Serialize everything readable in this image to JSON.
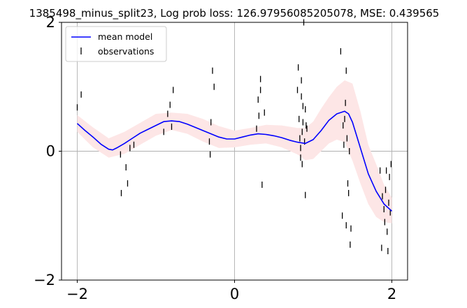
{
  "chart_data": {
    "type": "line",
    "title": "1385498_minus_split23, Log prob loss: 126.97956085205078, MSE: 0.439565",
    "xlabel": "",
    "ylabel": "",
    "xlim": [
      -2.2,
      2.2
    ],
    "ylim": [
      -2,
      2
    ],
    "x_ticks": [
      -2,
      0,
      2
    ],
    "y_ticks": [
      -2,
      0,
      2
    ],
    "x_tick_labels": [
      "−2",
      "0",
      "2"
    ],
    "y_tick_labels": [
      "−2",
      "0",
      "2"
    ],
    "grid": true,
    "legend": {
      "placement": "upper-left",
      "entries": [
        "mean model",
        "observations"
      ]
    },
    "colors": {
      "mean": "#0000ff",
      "band": "#fde6e6",
      "observations": "#000000",
      "grid": "#b0b0b0"
    },
    "series": [
      {
        "name": "mean model",
        "kind": "line",
        "x": [
          -2.0,
          -1.9,
          -1.8,
          -1.7,
          -1.6,
          -1.55,
          -1.5,
          -1.4,
          -1.3,
          -1.2,
          -1.1,
          -1.0,
          -0.9,
          -0.8,
          -0.7,
          -0.6,
          -0.5,
          -0.4,
          -0.3,
          -0.2,
          -0.1,
          0.0,
          0.1,
          0.2,
          0.3,
          0.4,
          0.5,
          0.6,
          0.7,
          0.8,
          0.9,
          1.0,
          1.1,
          1.2,
          1.3,
          1.4,
          1.45,
          1.5,
          1.6,
          1.7,
          1.8,
          1.9,
          2.0
        ],
        "y": [
          0.43,
          0.32,
          0.22,
          0.11,
          0.03,
          0.02,
          0.05,
          0.12,
          0.2,
          0.28,
          0.34,
          0.4,
          0.46,
          0.47,
          0.46,
          0.42,
          0.37,
          0.32,
          0.27,
          0.22,
          0.19,
          0.19,
          0.22,
          0.25,
          0.27,
          0.26,
          0.24,
          0.21,
          0.17,
          0.14,
          0.12,
          0.18,
          0.32,
          0.48,
          0.58,
          0.62,
          0.58,
          0.45,
          0.05,
          -0.35,
          -0.62,
          -0.82,
          -0.93
        ]
      },
      {
        "name": "",
        "kind": "band",
        "x": [
          -2.0,
          -1.8,
          -1.6,
          -1.4,
          -1.2,
          -1.0,
          -0.8,
          -0.6,
          -0.4,
          -0.2,
          0.0,
          0.2,
          0.4,
          0.6,
          0.8,
          0.9,
          1.0,
          1.1,
          1.2,
          1.3,
          1.4,
          1.5,
          1.6,
          1.7,
          1.8,
          1.9,
          2.0
        ],
        "upper": [
          0.56,
          0.37,
          0.2,
          0.3,
          0.44,
          0.58,
          0.6,
          0.58,
          0.5,
          0.39,
          0.32,
          0.36,
          0.41,
          0.4,
          0.36,
          0.36,
          0.46,
          0.66,
          0.84,
          1.0,
          1.1,
          1.05,
          0.62,
          0.1,
          -0.2,
          -0.52,
          -0.72
        ],
        "lower": [
          0.3,
          0.06,
          -0.1,
          -0.04,
          0.1,
          0.24,
          0.33,
          0.27,
          0.15,
          0.05,
          0.06,
          0.1,
          0.12,
          0.06,
          -0.05,
          -0.14,
          -0.12,
          0.0,
          0.12,
          0.18,
          0.14,
          -0.15,
          -0.5,
          -0.82,
          -1.02,
          -1.1,
          -1.12
        ]
      },
      {
        "name": "observations",
        "kind": "scatter",
        "marker": "vertical-line",
        "x": [
          -2.0,
          -1.95,
          -1.45,
          -1.44,
          -1.38,
          -1.36,
          -1.33,
          -1.28,
          -0.9,
          -0.85,
          -0.82,
          -0.8,
          -0.78,
          -0.32,
          -0.31,
          -0.3,
          -0.28,
          -0.26,
          0.28,
          0.3,
          0.31,
          0.33,
          0.33,
          0.35,
          0.38,
          0.8,
          0.81,
          0.82,
          0.83,
          0.84,
          0.84,
          0.85,
          0.85,
          0.86,
          0.86,
          0.87,
          0.87,
          0.88,
          0.89,
          0.9,
          0.9,
          0.91,
          0.92,
          1.35,
          1.37,
          1.38,
          1.39,
          1.4,
          1.41,
          1.42,
          1.42,
          1.43,
          1.44,
          1.45,
          1.46,
          1.47,
          1.48,
          1.85,
          1.87,
          1.88,
          1.9,
          1.91,
          1.92,
          1.93,
          1.94,
          1.95,
          1.96,
          1.97,
          1.98,
          1.99
        ],
        "y": [
          0.68,
          0.88,
          -0.05,
          -0.65,
          -0.25,
          -0.5,
          0.05,
          0.1,
          0.3,
          0.58,
          0.72,
          0.38,
          0.95,
          0.15,
          -0.05,
          0.45,
          1.25,
          1.0,
          0.35,
          0.8,
          0.55,
          0.95,
          1.12,
          -0.52,
          0.6,
          0.95,
          1.3,
          0.5,
          0.2,
          0.05,
          -0.1,
          0.85,
          1.1,
          0.3,
          -0.2,
          0.45,
          0.7,
          2.0,
          0.15,
          0.65,
          -0.68,
          0.4,
          0.35,
          1.55,
          -1.0,
          0.4,
          0.1,
          0.5,
          0.75,
          1.25,
          -1.15,
          0.2,
          -0.5,
          -0.65,
          0.0,
          -1.45,
          -1.2,
          -0.3,
          -1.5,
          -0.7,
          -0.9,
          -1.1,
          -0.6,
          -0.3,
          -1.25,
          -1.55,
          -0.8,
          -0.4,
          -0.95,
          -0.2
        ]
      }
    ]
  }
}
